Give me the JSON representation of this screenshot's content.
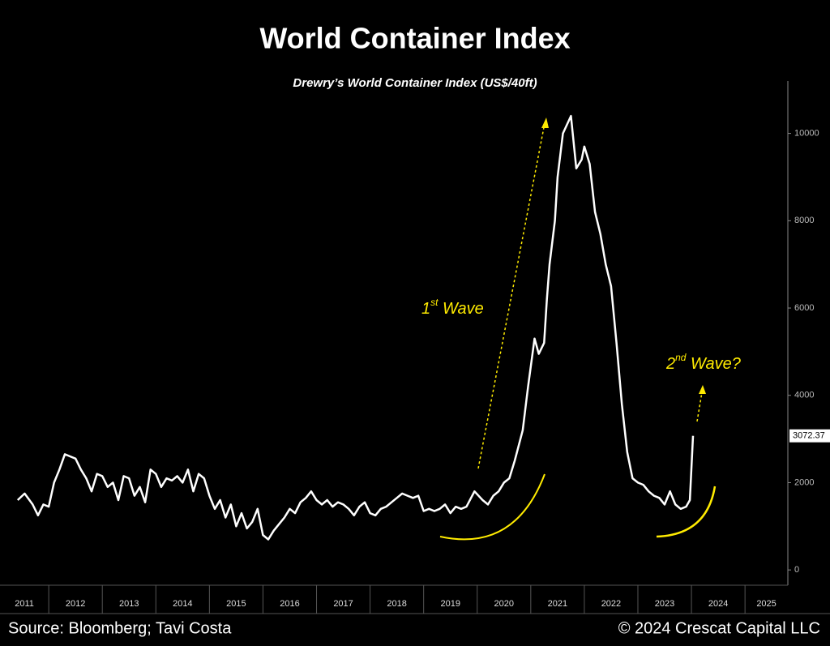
{
  "chart_data": {
    "type": "line",
    "title": "World Container Index",
    "subtitle": "Drewry’s World Container Index (US$/40ft)",
    "x": [
      2011.42,
      2011.55,
      2011.7,
      2011.8,
      2011.9,
      2012.0,
      2012.1,
      2012.2,
      2012.3,
      2012.4,
      2012.5,
      2012.6,
      2012.7,
      2012.8,
      2012.9,
      2013.0,
      2013.1,
      2013.2,
      2013.3,
      2013.4,
      2013.5,
      2013.6,
      2013.7,
      2013.8,
      2013.9,
      2014.0,
      2014.1,
      2014.2,
      2014.3,
      2014.4,
      2014.5,
      2014.6,
      2014.7,
      2014.8,
      2014.9,
      2015.0,
      2015.1,
      2015.2,
      2015.3,
      2015.4,
      2015.5,
      2015.6,
      2015.7,
      2015.8,
      2015.9,
      2016.0,
      2016.1,
      2016.2,
      2016.3,
      2016.4,
      2016.5,
      2016.6,
      2016.7,
      2016.8,
      2016.9,
      2017.0,
      2017.1,
      2017.2,
      2017.3,
      2017.4,
      2017.5,
      2017.6,
      2017.7,
      2017.8,
      2017.9,
      2018.0,
      2018.1,
      2018.2,
      2018.3,
      2018.4,
      2018.5,
      2018.6,
      2018.7,
      2018.8,
      2018.9,
      2019.0,
      2019.1,
      2019.2,
      2019.3,
      2019.4,
      2019.5,
      2019.6,
      2019.7,
      2019.8,
      2019.95,
      2020.1,
      2020.2,
      2020.3,
      2020.4,
      2020.5,
      2020.6,
      2020.7,
      2020.85,
      2020.95,
      2021.07,
      2021.15,
      2021.25,
      2021.3,
      2021.35,
      2021.45,
      2021.5,
      2021.6,
      2021.75,
      2021.85,
      2021.95,
      2022.0,
      2022.1,
      2022.2,
      2022.3,
      2022.4,
      2022.5,
      2022.6,
      2022.7,
      2022.8,
      2022.9,
      2023.0,
      2023.1,
      2023.2,
      2023.3,
      2023.4,
      2023.5,
      2023.6,
      2023.7,
      2023.8,
      2023.9,
      2023.97,
      2024.03
    ],
    "values": [
      1600,
      1750,
      1500,
      1250,
      1500,
      1450,
      2000,
      2300,
      2650,
      2600,
      2550,
      2300,
      2100,
      1800,
      2200,
      2150,
      1900,
      2000,
      1600,
      2150,
      2100,
      1700,
      1900,
      1550,
      2300,
      2200,
      1900,
      2100,
      2050,
      2150,
      2000,
      2300,
      1800,
      2200,
      2100,
      1700,
      1400,
      1600,
      1200,
      1500,
      1000,
      1300,
      950,
      1100,
      1400,
      800,
      700,
      900,
      1050,
      1200,
      1400,
      1300,
      1550,
      1650,
      1800,
      1600,
      1500,
      1600,
      1450,
      1550,
      1500,
      1400,
      1250,
      1450,
      1550,
      1300,
      1250,
      1400,
      1450,
      1550,
      1650,
      1750,
      1700,
      1650,
      1700,
      1350,
      1400,
      1350,
      1400,
      1500,
      1300,
      1450,
      1400,
      1450,
      1800,
      1600,
      1500,
      1700,
      1800,
      2000,
      2100,
      2500,
      3200,
      4200,
      5300,
      4950,
      5200,
      6200,
      7000,
      8000,
      9000,
      10000,
      10400,
      9200,
      9400,
      9700,
      9300,
      8200,
      7700,
      7000,
      6500,
      5200,
      3800,
      2700,
      2100,
      2000,
      1950,
      1800,
      1700,
      1650,
      1500,
      1800,
      1500,
      1400,
      1450,
      1600,
      3072.37
    ],
    "color": "#ffffff",
    "last_label": "3072.37",
    "xlim": [
      2011.09,
      2025.8
    ],
    "xticks": [
      2011,
      2012,
      2013,
      2014,
      2015,
      2016,
      2017,
      2018,
      2019,
      2020,
      2021,
      2022,
      2023,
      2024,
      2025
    ],
    "ylim": [
      -350,
      11200
    ],
    "yticks": [
      0,
      2000,
      4000,
      6000,
      8000,
      10000
    ],
    "annotations": [
      {
        "base": "1",
        "sup": "st",
        "rest": " Wave"
      },
      {
        "base": "2",
        "sup": "nd",
        "rest": " Wave?"
      }
    ]
  },
  "footer": {
    "source": "Source: Bloomberg; Tavi Costa",
    "copyright": "© 2024 Crescat Capital LLC"
  }
}
